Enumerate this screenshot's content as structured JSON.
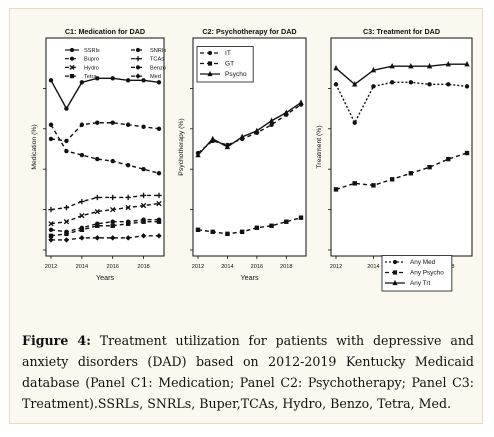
{
  "caption": {
    "label": "Figure 4:",
    "text": " Treatment utilization for patients with depressive and anxiety disorders (DAD) based on 2012-2019 Kentucky Medicaid database (Panel C1: Medication; Panel C2: Psychotherapy; Panel C3: Treatment).SSRLs, SNRLs, Buper,TCAs, Hydro, Benzo, Tetra, Med."
  },
  "chart_data": [
    {
      "type": "line",
      "title": "C1: Medication for DAD",
      "xlabel": "Years",
      "ylabel": "Medication (%)",
      "x": [
        2012,
        2013,
        2014,
        2015,
        2016,
        2017,
        2018,
        2019
      ],
      "x_ticks": [
        "2012",
        "2014",
        "2016",
        "2018"
      ],
      "ylim": [
        0,
        100
      ],
      "grid": false,
      "legend_position": "top",
      "series": [
        {
          "name": "SSRIs",
          "style": "solid",
          "marker": "circle",
          "values": [
            84,
            70,
            83,
            85,
            85,
            84,
            84,
            83
          ]
        },
        {
          "name": "SNRIs",
          "style": "dashed",
          "marker": "circle",
          "values": [
            62,
            49,
            47,
            45,
            44,
            42,
            40,
            38
          ]
        },
        {
          "name": "Bupro",
          "style": "dashed",
          "marker": "circle",
          "values": [
            55,
            54,
            62,
            63,
            63,
            62,
            61,
            60
          ]
        },
        {
          "name": "TCAs",
          "style": "dashed",
          "marker": "cross",
          "values": [
            20,
            21,
            24,
            26,
            26,
            26,
            27,
            27
          ]
        },
        {
          "name": "Hydro",
          "style": "dashed",
          "marker": "times",
          "values": [
            13,
            14,
            17,
            19,
            20,
            21,
            22,
            23
          ]
        },
        {
          "name": "Benzo",
          "style": "dashed",
          "marker": "circle",
          "values": [
            10,
            9,
            11,
            13,
            14,
            14,
            15,
            15
          ]
        },
        {
          "name": "Tetra",
          "style": "dashed",
          "marker": "square",
          "values": [
            7,
            8,
            10,
            12,
            12,
            13,
            14,
            14
          ]
        },
        {
          "name": "Med",
          "style": "dashed",
          "marker": "diamond",
          "values": [
            5,
            5,
            6,
            6,
            6,
            6,
            7,
            7
          ]
        }
      ]
    },
    {
      "type": "line",
      "title": "C2: Psychotherapy for DAD",
      "xlabel": "Years",
      "ylabel": "Psychotherapy (%)",
      "x": [
        2012,
        2013,
        2014,
        2015,
        2016,
        2017,
        2018,
        2019
      ],
      "x_ticks": [
        "2012",
        "2014",
        "2016",
        "2018"
      ],
      "ylim": [
        0,
        100
      ],
      "grid": false,
      "legend_position": "top-left",
      "series": [
        {
          "name": "IT",
          "style": "dashed",
          "marker": "circle",
          "values": [
            48,
            54,
            52,
            55,
            58,
            62,
            67,
            72
          ]
        },
        {
          "name": "GT",
          "style": "dashed",
          "marker": "square",
          "values": [
            10,
            9,
            8,
            9,
            11,
            12,
            14,
            16
          ]
        },
        {
          "name": "Psycho",
          "style": "solid",
          "marker": "triangle",
          "values": [
            47,
            55,
            51,
            56,
            59,
            64,
            68,
            73
          ]
        }
      ]
    },
    {
      "type": "line",
      "title": "C3: Treatment for DAD",
      "xlabel": "Years",
      "ylabel": "Treatment (%)",
      "x": [
        2012,
        2013,
        2014,
        2015,
        2016,
        2017,
        2018,
        2019
      ],
      "x_ticks": [
        "2012",
        "2014",
        "2016",
        "2018"
      ],
      "ylim": [
        0,
        100
      ],
      "grid": false,
      "legend_position": "bottom-right",
      "series": [
        {
          "name": "Any Med",
          "style": "dotted",
          "marker": "circle",
          "values": [
            82,
            63,
            81,
            83,
            83,
            82,
            82,
            81
          ]
        },
        {
          "name": "Any Psycho",
          "style": "dashed",
          "marker": "square",
          "values": [
            30,
            33,
            32,
            35,
            38,
            41,
            45,
            48
          ]
        },
        {
          "name": "Any Trt",
          "style": "solid",
          "marker": "triangle",
          "values": [
            90,
            82,
            89,
            91,
            91,
            91,
            92,
            92
          ]
        }
      ]
    }
  ]
}
